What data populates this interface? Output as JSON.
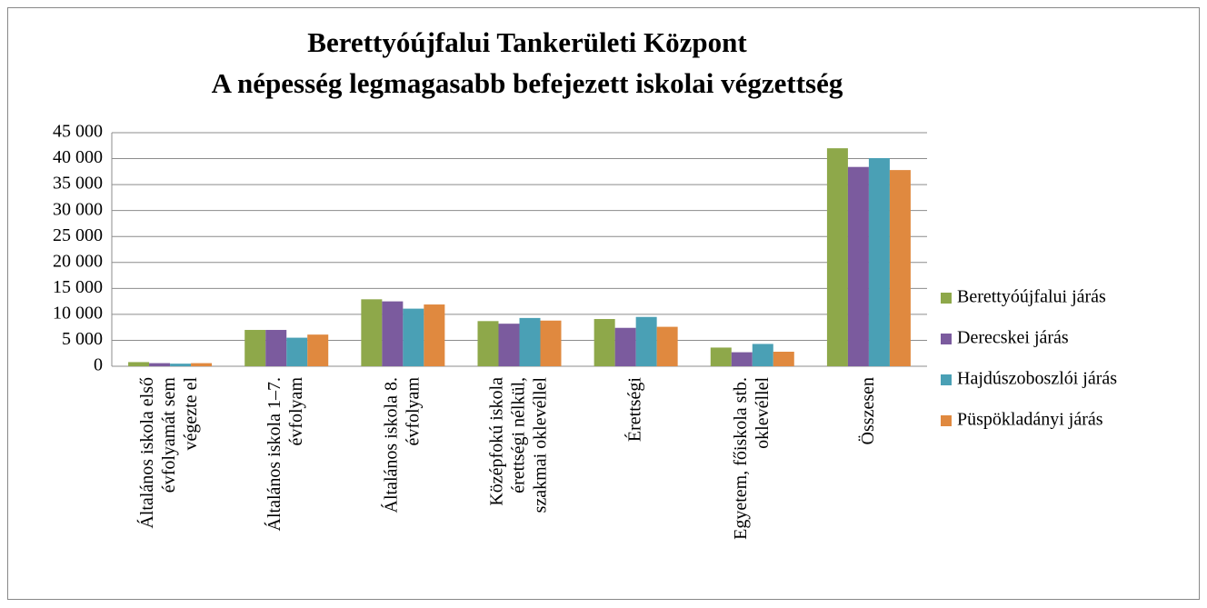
{
  "chart_data": {
    "type": "bar",
    "title": [
      "Berettyóújfalui Tankerületi Központ",
      "A népesség legmagasabb befejezett iskolai végzettség"
    ],
    "categories": [
      "Általános iskola első\névfolyamát sem\nvégezte el",
      "Általános iskola 1–7.\névfolyam",
      "Általános iskola 8.\névfolyam",
      "Középfokú iskola\nérettségi nélkül,\nszakmai oklevéllel",
      "Érettségi",
      "Egyetem, főiskola stb.\noklevéllel",
      "Összesen"
    ],
    "series": [
      {
        "name": "Berettyóújfalui járás",
        "color": "#8ea84a",
        "values": [
          800,
          7000,
          12900,
          8700,
          9100,
          3600,
          42000
        ]
      },
      {
        "name": "Derecskei járás",
        "color": "#7b5b9e",
        "values": [
          600,
          7000,
          12500,
          8200,
          7400,
          2700,
          38400
        ]
      },
      {
        "name": "Hajdúszoboszlói járás",
        "color": "#4aa0b5",
        "values": [
          500,
          5500,
          11100,
          9300,
          9500,
          4300,
          40100
        ]
      },
      {
        "name": "Püspökladányi járás",
        "color": "#e0893f",
        "values": [
          600,
          6100,
          11900,
          8800,
          7600,
          2800,
          37800
        ]
      }
    ],
    "ylim": [
      0,
      45000
    ],
    "yticks": [
      0,
      {
        "value": 5000,
        "label": "5 000"
      },
      {
        "value": 10000,
        "label": "10 000"
      },
      {
        "value": 15000,
        "label": "15 000"
      },
      {
        "value": 20000,
        "label": "20 000"
      },
      {
        "value": 25000,
        "label": "25 000"
      },
      {
        "value": 30000,
        "label": "30 000"
      },
      {
        "value": 35000,
        "label": "35 000"
      },
      {
        "value": 40000,
        "label": "40 000"
      },
      {
        "value": 45000,
        "label": "45 000"
      }
    ],
    "grid": true,
    "legend": "right"
  }
}
